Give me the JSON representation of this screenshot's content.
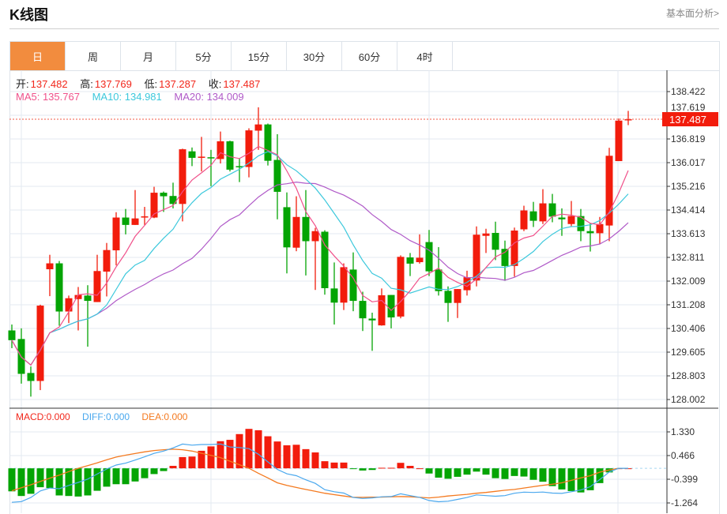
{
  "header": {
    "title": "K线图",
    "link": "基本面分析>"
  },
  "tabs": [
    {
      "label": "日",
      "active": true
    },
    {
      "label": "周"
    },
    {
      "label": "月"
    },
    {
      "label": "5分"
    },
    {
      "label": "15分"
    },
    {
      "label": "30分"
    },
    {
      "label": "60分"
    },
    {
      "label": "4时"
    }
  ],
  "ohlc_info": {
    "open_label": "开:",
    "open": "137.482",
    "high_label": "高:",
    "high": "137.769",
    "low_label": "低:",
    "low": "137.287",
    "close_label": "收:",
    "close": "137.487"
  },
  "ma_info": {
    "ma5": "MA5: 135.767",
    "ma10": "MA10: 134.981",
    "ma20": "MA20: 134.009"
  },
  "macd_info": {
    "macd": "MACD:0.000",
    "diff": "DIFF:0.000",
    "dea": "DEA:0.000"
  },
  "colors": {
    "up": "#f21c0c",
    "down": "#04a404",
    "ma5": "#f0508a",
    "ma10": "#3cc8dc",
    "ma20": "#b05ac8",
    "dea": "#f47a20",
    "diff": "#4aa8ee",
    "accent": "#f28c3e"
  },
  "chart_data": {
    "type": "candlestick",
    "current_price": "137.487",
    "price_axis": {
      "ticks": [
        "138.422",
        "137.619",
        "136.819",
        "136.017",
        "135.216",
        "134.414",
        "133.613",
        "132.811",
        "132.009",
        "131.208",
        "130.406",
        "129.605",
        "128.803",
        "128.002"
      ],
      "range": [
        128.002,
        138.422
      ]
    },
    "macd_axis": {
      "ticks": [
        "1.330",
        "0.466",
        "-0.399",
        "-1.264"
      ],
      "range": [
        -1.264,
        1.33
      ]
    },
    "candles": [
      [
        130.34,
        130.54,
        129.74,
        130.01
      ],
      [
        130.05,
        130.41,
        128.54,
        128.87
      ],
      [
        128.9,
        129.12,
        128.1,
        128.63
      ],
      [
        128.63,
        131.21,
        128.32,
        131.18
      ],
      [
        132.41,
        132.9,
        131.5,
        132.61
      ],
      [
        132.61,
        132.69,
        130.5,
        130.98
      ],
      [
        130.98,
        131.52,
        130.59,
        131.43
      ],
      [
        131.4,
        131.81,
        130.34,
        131.54
      ],
      [
        131.52,
        131.87,
        129.79,
        131.34
      ],
      [
        131.3,
        132.9,
        131.3,
        132.35
      ],
      [
        132.33,
        133.3,
        131.49,
        133.06
      ],
      [
        133.05,
        134.34,
        132.54,
        134.16
      ],
      [
        134.16,
        134.45,
        133.59,
        133.91
      ],
      [
        133.91,
        135.09,
        133.91,
        134.13
      ],
      [
        134.16,
        134.52,
        133.91,
        134.2
      ],
      [
        134.16,
        135.2,
        134.14,
        135.0
      ],
      [
        135.0,
        135.04,
        134.35,
        134.88
      ],
      [
        134.89,
        135.34,
        134.47,
        134.62
      ],
      [
        134.62,
        136.49,
        134.03,
        136.47
      ],
      [
        136.4,
        136.53,
        135.9,
        136.18
      ],
      [
        136.18,
        136.89,
        135.72,
        136.22
      ],
      [
        136.2,
        136.45,
        135.22,
        136.16
      ],
      [
        136.14,
        137.07,
        135.99,
        136.74
      ],
      [
        136.74,
        136.76,
        135.72,
        135.78
      ],
      [
        135.9,
        136.16,
        135.36,
        135.88
      ],
      [
        135.87,
        137.18,
        135.52,
        137.11
      ],
      [
        137.1,
        137.89,
        136.45,
        137.31
      ],
      [
        137.31,
        137.34,
        135.92,
        136.08
      ],
      [
        136.11,
        136.98,
        134.1,
        135.03
      ],
      [
        134.51,
        135.01,
        132.27,
        133.15
      ],
      [
        133.14,
        134.88,
        133.02,
        134.18
      ],
      [
        134.18,
        135.09,
        132.2,
        133.36
      ],
      [
        133.36,
        133.81,
        131.71,
        133.7
      ],
      [
        133.68,
        133.73,
        131.55,
        131.77
      ],
      [
        131.76,
        132.64,
        130.54,
        131.28
      ],
      [
        131.28,
        132.61,
        131.03,
        132.48
      ],
      [
        132.4,
        132.98,
        130.99,
        131.34
      ],
      [
        131.34,
        131.65,
        130.32,
        130.75
      ],
      [
        130.74,
        130.94,
        129.65,
        130.68
      ],
      [
        130.51,
        131.76,
        130.5,
        131.53
      ],
      [
        131.54,
        131.54,
        130.41,
        130.78
      ],
      [
        130.81,
        132.88,
        130.75,
        132.83
      ],
      [
        132.81,
        132.96,
        132.18,
        132.6
      ],
      [
        132.65,
        133.59,
        132.6,
        132.8
      ],
      [
        133.33,
        133.74,
        132.18,
        132.34
      ],
      [
        132.4,
        133.16,
        131.52,
        131.67
      ],
      [
        131.68,
        131.83,
        130.63,
        131.27
      ],
      [
        131.27,
        131.74,
        130.76,
        131.74
      ],
      [
        131.7,
        132.36,
        131.52,
        132.14
      ],
      [
        132.03,
        133.86,
        131.83,
        133.58
      ],
      [
        133.54,
        133.78,
        132.96,
        133.62
      ],
      [
        133.64,
        134.02,
        132.72,
        133.07
      ],
      [
        133.1,
        133.38,
        132.02,
        132.52
      ],
      [
        132.52,
        133.82,
        132.16,
        133.72
      ],
      [
        133.76,
        134.56,
        133.7,
        134.4
      ],
      [
        134.37,
        134.69,
        133.84,
        134.05
      ],
      [
        134.03,
        135.12,
        133.94,
        134.64
      ],
      [
        134.64,
        134.96,
        134.0,
        134.19
      ],
      [
        134.16,
        134.47,
        133.54,
        134.1
      ],
      [
        133.94,
        134.72,
        133.87,
        134.21
      ],
      [
        134.21,
        134.45,
        133.36,
        133.7
      ],
      [
        133.7,
        133.96,
        133.01,
        133.63
      ],
      [
        133.63,
        134.18,
        133.25,
        133.94
      ],
      [
        133.89,
        136.52,
        133.36,
        136.25
      ],
      [
        136.07,
        137.51,
        136.07,
        137.44
      ],
      [
        137.482,
        137.769,
        137.287,
        137.487
      ]
    ],
    "macd": [
      -0.84,
      -1.01,
      -0.93,
      -0.69,
      -0.72,
      -0.99,
      -1.01,
      -1.03,
      -0.99,
      -0.82,
      -0.67,
      -0.58,
      -0.58,
      -0.48,
      -0.36,
      -0.21,
      -0.1,
      0.09,
      0.41,
      0.43,
      0.64,
      0.8,
      0.99,
      1.04,
      1.25,
      1.44,
      1.39,
      1.17,
      0.98,
      0.84,
      0.86,
      0.7,
      0.58,
      0.26,
      0.21,
      0.21,
      -0.01,
      -0.08,
      -0.06,
      0.02,
      0.02,
      0.2,
      0.09,
      0.0,
      -0.19,
      -0.34,
      -0.38,
      -0.31,
      -0.23,
      -0.12,
      -0.23,
      -0.36,
      -0.39,
      -0.28,
      -0.3,
      -0.42,
      -0.49,
      -0.65,
      -0.77,
      -0.83,
      -0.88,
      -0.8,
      -0.54,
      -0.15,
      0.0,
      0.0
    ],
    "dea": [
      -0.82,
      -0.71,
      -0.6,
      -0.48,
      -0.36,
      -0.25,
      -0.12,
      0.0,
      0.1,
      0.2,
      0.31,
      0.41,
      0.48,
      0.54,
      0.6,
      0.65,
      0.68,
      0.7,
      0.68,
      0.63,
      0.55,
      0.47,
      0.39,
      0.26,
      0.13,
      0.0,
      -0.18,
      -0.35,
      -0.53,
      -0.62,
      -0.7,
      -0.77,
      -0.84,
      -0.91,
      -0.96,
      -1.01,
      -1.06,
      -1.06,
      -1.05,
      -1.05,
      -1.04,
      -1.03,
      -1.04,
      -1.06,
      -1.08,
      -1.05,
      -1.01,
      -0.98,
      -0.95,
      -0.91,
      -0.88,
      -0.84,
      -0.8,
      -0.77,
      -0.72,
      -0.67,
      -0.62,
      -0.58,
      -0.53,
      -0.44,
      -0.35,
      -0.27,
      -0.14,
      -0.06,
      0.0,
      0.0
    ]
  }
}
